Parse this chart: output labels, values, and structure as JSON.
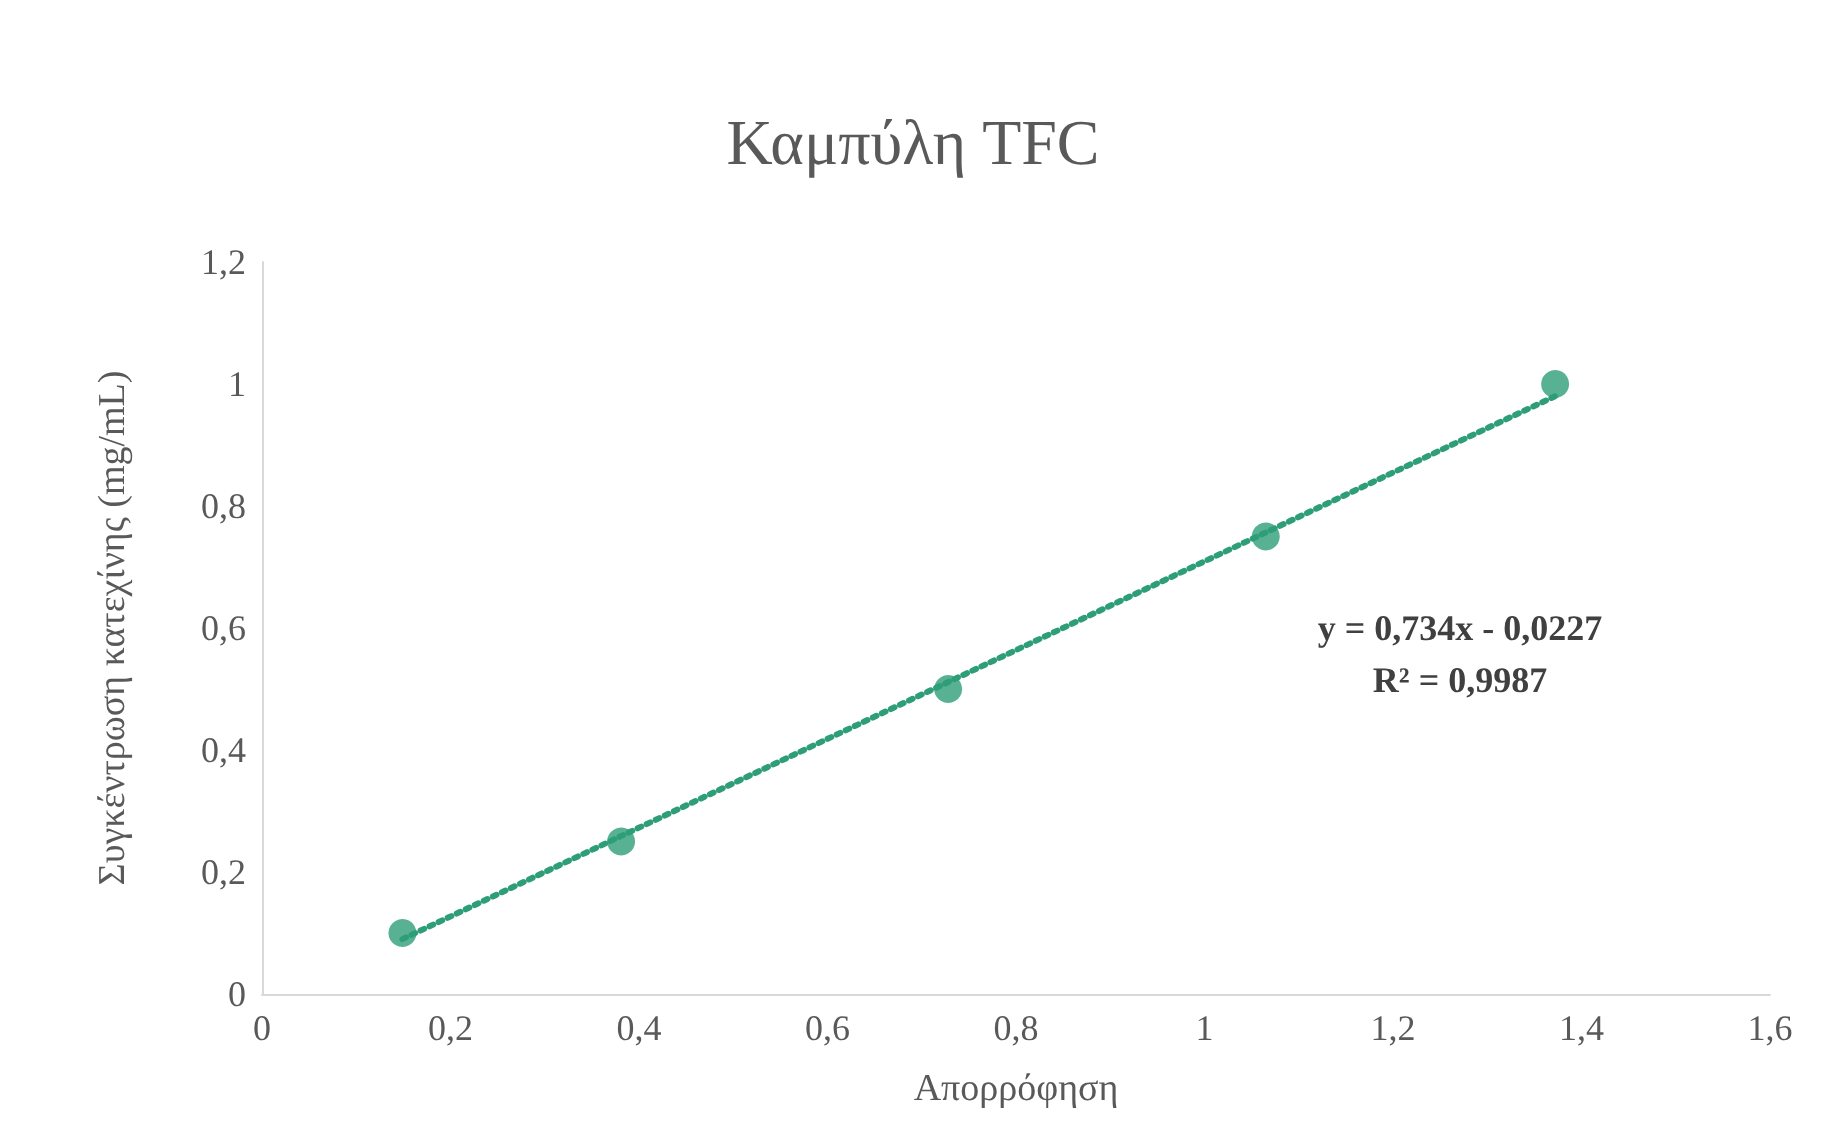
{
  "chart_data": {
    "type": "scatter",
    "title": "Καμπύλη TFC",
    "xlabel": "Απορρόφηση",
    "ylabel": "Συγκέντρωση κατεχίνης (mg/mL)",
    "series": [
      {
        "color": "#2e9e78",
        "marker": "circle",
        "x": [
          0.149,
          0.381,
          0.728,
          1.065,
          1.372
        ],
        "values": [
          0.1,
          0.25,
          0.5,
          0.75,
          1
        ]
      },
      {
        "type": "line",
        "color": "#2e9e78",
        "marker": "none",
        "line_style": "dotted",
        "x": [
          0.149,
          1.372
        ],
        "values": [
          0.09,
          0.98
        ]
      }
    ],
    "annotations": [
      "y = 0,734x - 0,0227",
      "R² = 0,9987"
    ],
    "xlim": [
      0,
      1.6
    ],
    "xticks": [
      0,
      {
        "value": 0.2,
        "label": "0,2"
      },
      {
        "value": 0.4,
        "label": "0,4"
      },
      {
        "value": 0.6,
        "label": "0,6"
      },
      {
        "value": 0.8,
        "label": "0,8"
      },
      1,
      {
        "value": 1.2,
        "label": "1,2"
      },
      {
        "value": 1.4,
        "label": "1,4"
      },
      {
        "value": 1.6,
        "label": "1,6"
      }
    ],
    "ylim": [
      0,
      1.2
    ],
    "yticks": [
      0,
      {
        "value": 0.2,
        "label": "0,2"
      },
      {
        "value": 0.4,
        "label": "0,4"
      },
      {
        "value": 0.6,
        "label": "0,6"
      },
      {
        "value": 0.8,
        "label": "0,8"
      },
      1,
      {
        "value": 1.2,
        "label": "1,2"
      }
    ],
    "grid": false
  }
}
